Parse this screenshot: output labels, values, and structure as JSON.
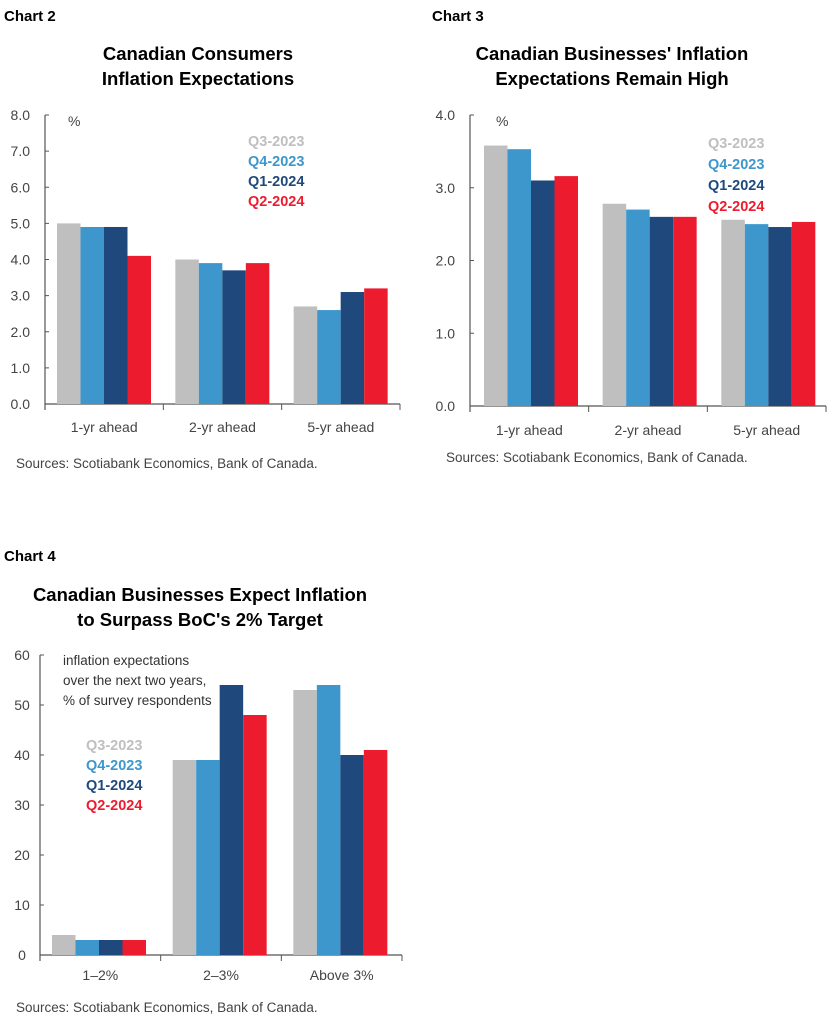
{
  "colors": {
    "Q3-2023": "#bfbfbf",
    "Q4-2023": "#3d97cc",
    "Q1-2024": "#1f497d",
    "Q2-2024": "#ec1c2e"
  },
  "chart_data": [
    {
      "label": "Chart 2",
      "type": "bar",
      "title": [
        "Canadian Consumers",
        "Inflation Expectations"
      ],
      "unit": "%",
      "categories": [
        "1-yr ahead",
        "2-yr ahead",
        "5-yr ahead"
      ],
      "ylim": [
        0,
        8
      ],
      "yticks": [
        "0.0",
        "1.0",
        "2.0",
        "3.0",
        "4.0",
        "5.0",
        "6.0",
        "7.0",
        "8.0"
      ],
      "series": [
        {
          "name": "Q3-2023",
          "values": [
            5.0,
            4.0,
            2.7
          ]
        },
        {
          "name": "Q4-2023",
          "values": [
            4.9,
            3.9,
            2.6
          ]
        },
        {
          "name": "Q1-2024",
          "values": [
            4.9,
            3.7,
            3.1
          ]
        },
        {
          "name": "Q2-2024",
          "values": [
            4.1,
            3.9,
            3.2
          ]
        }
      ],
      "legend": "top-right",
      "grid": false,
      "source": "Sources: Scotiabank Economics, Bank of Canada."
    },
    {
      "label": "Chart 3",
      "type": "bar",
      "title": [
        "Canadian Businesses' Inflation",
        "Expectations Remain High"
      ],
      "unit": "%",
      "categories": [
        "1-yr ahead",
        "2-yr ahead",
        "5-yr ahead"
      ],
      "ylim": [
        0,
        4
      ],
      "yticks": [
        "0.0",
        "1.0",
        "2.0",
        "3.0",
        "4.0"
      ],
      "series": [
        {
          "name": "Q3-2023",
          "values": [
            3.58,
            2.78,
            2.56
          ]
        },
        {
          "name": "Q4-2023",
          "values": [
            3.53,
            2.7,
            2.5
          ]
        },
        {
          "name": "Q1-2024",
          "values": [
            3.1,
            2.6,
            2.46
          ]
        },
        {
          "name": "Q2-2024",
          "values": [
            3.16,
            2.6,
            2.53
          ]
        }
      ],
      "legend": "top-right",
      "grid": false,
      "source": "Sources: Scotiabank Economics, Bank of Canada."
    },
    {
      "label": "Chart 4",
      "type": "bar",
      "title": [
        "Canadian Businesses Expect Inflation",
        "to Surpass BoC's 2% Target"
      ],
      "note": [
        "inflation expectations",
        "over the next two years,",
        "% of survey respondents"
      ],
      "categories": [
        "1–2%",
        "2–3%",
        "Above 3%"
      ],
      "ylim": [
        0,
        60
      ],
      "yticks": [
        "0",
        "10",
        "20",
        "30",
        "40",
        "50",
        "60"
      ],
      "series": [
        {
          "name": "Q3-2023",
          "values": [
            4,
            39,
            53
          ]
        },
        {
          "name": "Q4-2023",
          "values": [
            3,
            39,
            54
          ]
        },
        {
          "name": "Q1-2024",
          "values": [
            3,
            54,
            40
          ]
        },
        {
          "name": "Q2-2024",
          "values": [
            3,
            48,
            41
          ]
        }
      ],
      "legend": "top-left",
      "grid": false,
      "source": "Sources: Scotiabank Economics, Bank of Canada."
    }
  ]
}
